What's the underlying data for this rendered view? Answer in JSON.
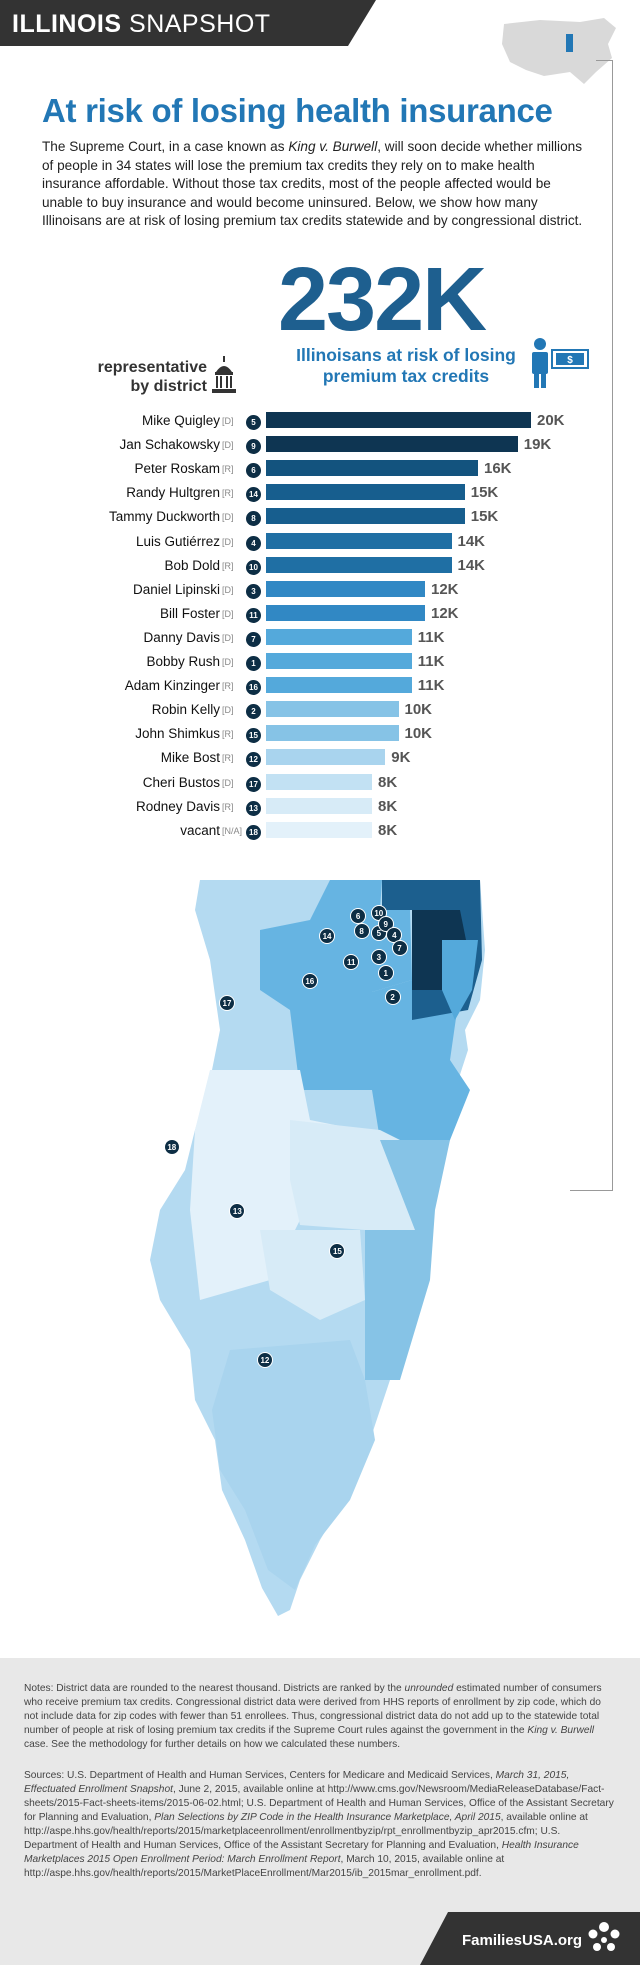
{
  "header": {
    "title_bold": "ILLINOIS",
    "title_rest": "SNAPSHOT"
  },
  "title": "At risk of losing health insurance",
  "intro": {
    "p1": "The Supreme Court, in a case known as ",
    "case": "King v. Burwell",
    "p2": ", will soon decide whether millions of people in 34 states will lose the premium tax credits they rely on to make health insurance affordable. Without those tax credits, most of the people affected would be unable to buy insurance and would become uninsured. Below, we show how many Illinoisans are at risk of losing premium tax credits statewide and by congressional district."
  },
  "highlight": {
    "number": "232K",
    "caption": "Illinoisans at risk of losing premium tax credits"
  },
  "rep_heading": "representative by district",
  "chart_data": {
    "type": "bar",
    "orientation": "horizontal",
    "unit": "K",
    "rows": [
      {
        "name": "Mike Quigley",
        "party": "[D]",
        "district": "5",
        "value": 20,
        "label": "20K",
        "color": "#0e3552"
      },
      {
        "name": "Jan Schakowsky",
        "party": "[D]",
        "district": "9",
        "value": 19,
        "label": "19K",
        "color": "#0e3552"
      },
      {
        "name": "Peter Roskam",
        "party": "[R]",
        "district": "6",
        "value": 16,
        "label": "16K",
        "color": "#13537e"
      },
      {
        "name": "Randy Hultgren",
        "party": "[R]",
        "district": "14",
        "value": 15,
        "label": "15K",
        "color": "#175e8e"
      },
      {
        "name": "Tammy Duckworth",
        "party": "[D]",
        "district": "8",
        "value": 15,
        "label": "15K",
        "color": "#175e8e"
      },
      {
        "name": "Luis Gutiérrez",
        "party": "[D]",
        "district": "4",
        "value": 14,
        "label": "14K",
        "color": "#1f6fa4"
      },
      {
        "name": "Bob Dold",
        "party": "[R]",
        "district": "10",
        "value": 14,
        "label": "14K",
        "color": "#1f6fa4"
      },
      {
        "name": "Daniel Lipinski",
        "party": "[D]",
        "district": "3",
        "value": 12,
        "label": "12K",
        "color": "#3188c4"
      },
      {
        "name": "Bill Foster",
        "party": "[D]",
        "district": "11",
        "value": 12,
        "label": "12K",
        "color": "#3188c4"
      },
      {
        "name": "Danny Davis",
        "party": "[D]",
        "district": "7",
        "value": 11,
        "label": "11K",
        "color": "#54a9db"
      },
      {
        "name": "Bobby Rush",
        "party": "[D]",
        "district": "1",
        "value": 11,
        "label": "11K",
        "color": "#54a9db"
      },
      {
        "name": "Adam Kinzinger",
        "party": "[R]",
        "district": "16",
        "value": 11,
        "label": "11K",
        "color": "#54a9db"
      },
      {
        "name": "Robin Kelly",
        "party": "[D]",
        "district": "2",
        "value": 10,
        "label": "10K",
        "color": "#86c3e6"
      },
      {
        "name": "John Shimkus",
        "party": "[R]",
        "district": "15",
        "value": 10,
        "label": "10K",
        "color": "#86c3e6"
      },
      {
        "name": "Mike Bost",
        "party": "[R]",
        "district": "12",
        "value": 9,
        "label": "9K",
        "color": "#a9d4ee"
      },
      {
        "name": "Cheri Bustos",
        "party": "[D]",
        "district": "17",
        "value": 8,
        "label": "8K",
        "color": "#c2e1f3"
      },
      {
        "name": "Rodney Davis",
        "party": "[R]",
        "district": "13",
        "value": 8,
        "label": "8K",
        "color": "#d7ebf7"
      },
      {
        "name": "vacant",
        "party": "[N/A]",
        "district": "18",
        "value": 8,
        "label": "8K",
        "color": "#e3f1fa"
      }
    ],
    "xlim": [
      0,
      20
    ]
  },
  "map": {
    "markers": [
      {
        "district": "17",
        "fx": 0.2,
        "fy": 0.156
      },
      {
        "district": "16",
        "fx": 0.44,
        "fy": 0.126
      },
      {
        "district": "14",
        "fx": 0.49,
        "fy": 0.065
      },
      {
        "district": "6",
        "fx": 0.58,
        "fy": 0.038
      },
      {
        "district": "10",
        "fx": 0.64,
        "fy": 0.034
      },
      {
        "district": "8",
        "fx": 0.59,
        "fy": 0.058
      },
      {
        "district": "5",
        "fx": 0.64,
        "fy": 0.061
      },
      {
        "district": "9",
        "fx": 0.66,
        "fy": 0.049
      },
      {
        "district": "4",
        "fx": 0.685,
        "fy": 0.064
      },
      {
        "district": "7",
        "fx": 0.7,
        "fy": 0.081
      },
      {
        "district": "3",
        "fx": 0.64,
        "fy": 0.093
      },
      {
        "district": "11",
        "fx": 0.56,
        "fy": 0.1
      },
      {
        "district": "1",
        "fx": 0.66,
        "fy": 0.115
      },
      {
        "district": "2",
        "fx": 0.68,
        "fy": 0.147
      },
      {
        "district": "18",
        "fx": 0.04,
        "fy": 0.35
      },
      {
        "district": "13",
        "fx": 0.23,
        "fy": 0.437
      },
      {
        "district": "15",
        "fx": 0.52,
        "fy": 0.49
      },
      {
        "district": "12",
        "fx": 0.31,
        "fy": 0.638
      }
    ]
  },
  "notes": {
    "a": "Notes: District data are rounded to the nearest thousand. Districts are ranked by the ",
    "unrounded": "unrounded",
    "b": " estimated number of consumers who receive premium tax credits. Congressional district data were derived from HHS reports of enrollment by zip code, which do not include data for zip codes with fewer than 51 enrollees. Thus, congressional district data do not add up to the statewide total number of people at risk of losing premium tax credits if the Supreme Court rules against the government in the ",
    "case": "King v. Burwell",
    "c": " case. See the methodology for further details on how we calculated these numbers."
  },
  "sources": {
    "a": "Sources: U.S. Department of Health and Human Services, Centers for Medicare and Medicaid Services, ",
    "i1": "March 31, 2015, Effectuated Enrollment Snapshot",
    "b": ", June 2, 2015, available online at http://www.cms.gov/Newsroom/MediaReleaseDatabase/Fact-sheets/2015-Fact-sheets-items/2015-06-02.html; U.S. Department of Health and Human Services, Office of the Assistant Secretary for Planning and Evaluation, ",
    "i2": "Plan Selections by ZIP Code in the Health Insurance Marketplace, April 2015",
    "c": ", available online at http://aspe.hhs.gov/health/reports/2015/marketplaceenrollment/enrollmentbyzip/rpt_enrollmentbyzip_apr2015.cfm; U.S. Department of Health and Human Services, Office of the Assistant Secretary for Planning and Evaluation, ",
    "i3": "Health Insurance Marketplaces 2015 Open Enrollment Period: March Enrollment Report",
    "d": ", March 10, 2015, available online at http://aspe.hhs.gov/health/reports/2015/MarketPlaceEnrollment/Mar2015/ib_2015mar_enrollment.pdf."
  },
  "footer": {
    "brand": "FamiliesUSA.org"
  },
  "colors": {
    "title": "#2277b5",
    "big_number": "#1e5f8f",
    "dark": "#0d2e45"
  }
}
